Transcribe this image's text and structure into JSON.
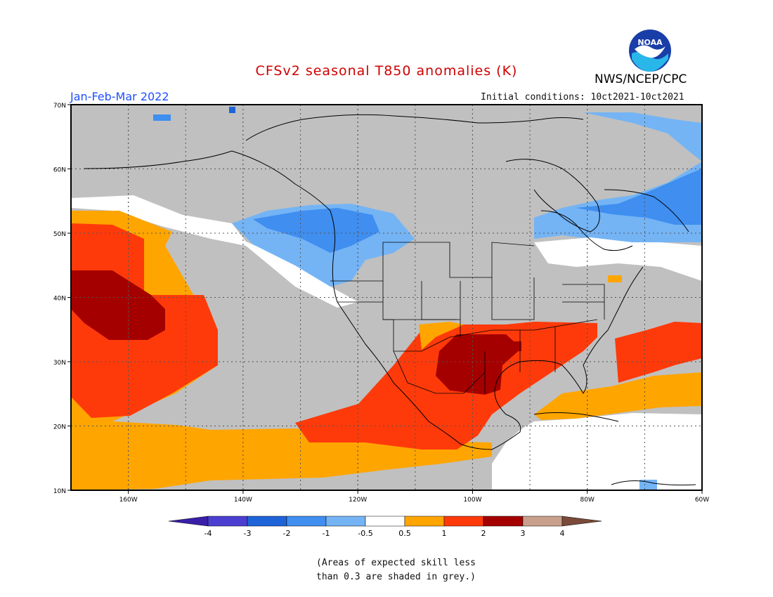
{
  "title": "CFSv2 seasonal T850 anomalies (K)",
  "agency": "NWS/NCEP/CPC",
  "logo_text": "NOAA",
  "season": "Jan-Feb-Mar 2022",
  "initial_conditions": "Initial conditions: 10ct2021-10ct2021",
  "note": [
    "(Areas of expected skill less",
    "than 0.3 are shaded in grey.)"
  ],
  "map": {
    "lat_labels": [
      "70N",
      "60N",
      "50N",
      "40N",
      "30N",
      "20N",
      "10N"
    ],
    "lon_labels": [
      "160W",
      "140W",
      "120W",
      "100W",
      "80W",
      "60W"
    ],
    "extent": {
      "lon": [
        -170,
        -60
      ],
      "lat": [
        10,
        70
      ]
    },
    "grid": true
  },
  "legend": {
    "ticks": [
      "-4",
      "-3",
      "-2",
      "-1",
      "-0.5",
      "0.5",
      "1",
      "2",
      "3",
      "4"
    ],
    "colors": [
      "#3a1ea8",
      "#4b3fd1",
      "#1e64d8",
      "#3f8ef0",
      "#74b4f5",
      "#ffffff",
      "#ffa500",
      "#ff3a0a",
      "#a50000",
      "#c8a08c",
      "#7a4a3a"
    ],
    "grey_color": "#c0c0c0"
  },
  "colors": {
    "title": "#d00000",
    "season": "#1f4fff",
    "grey": "#c0c0c0",
    "orange": "#ffa500",
    "red": "#ff3a0a",
    "darkred": "#a50000",
    "lightblue": "#74b4f5",
    "blue": "#3f8ef0"
  }
}
